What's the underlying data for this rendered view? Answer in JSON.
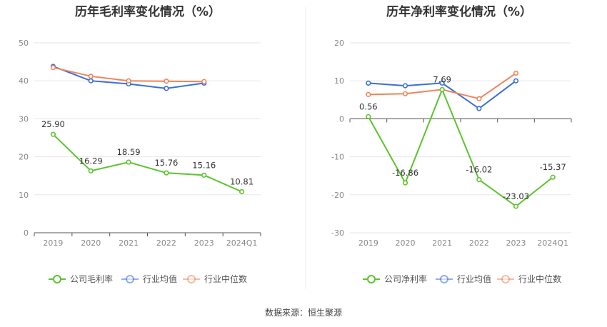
{
  "source_text": "数据来源：恒生聚源",
  "chart_data": [
    {
      "type": "line",
      "title": "历年毛利率变化情况（%）",
      "categories": [
        "2019",
        "2020",
        "2021",
        "2022",
        "2023",
        "2024Q1"
      ],
      "ylim": [
        0,
        50
      ],
      "yticks": [
        0,
        10,
        20,
        30,
        40,
        50
      ],
      "grid": true,
      "legend_position": "bottom",
      "series": [
        {
          "name": "公司毛利率",
          "color": "#5bc42e",
          "values": [
            25.9,
            16.29,
            18.59,
            15.76,
            15.16,
            10.81
          ],
          "labels": [
            "25.90",
            "16.29",
            "18.59",
            "15.76",
            "15.16",
            "10.81"
          ]
        },
        {
          "name": "行业均值",
          "color": "#3a6fd8",
          "values": [
            43.8,
            40.0,
            39.2,
            38.0,
            39.4,
            null
          ]
        },
        {
          "name": "行业中位数",
          "color": "#f0845a",
          "values": [
            43.5,
            41.2,
            40.0,
            39.9,
            39.8,
            null
          ]
        }
      ]
    },
    {
      "type": "line",
      "title": "历年净利率变化情况（%）",
      "categories": [
        "2019",
        "2020",
        "2021",
        "2022",
        "2023",
        "2024Q1"
      ],
      "ylim": [
        -30,
        20
      ],
      "yticks": [
        -30,
        -20,
        -10,
        0,
        10,
        20
      ],
      "grid": true,
      "legend_position": "bottom",
      "series": [
        {
          "name": "公司净利率",
          "color": "#5bc42e",
          "values": [
            0.56,
            -16.86,
            7.69,
            -16.02,
            -23.03,
            -15.37
          ],
          "labels": [
            "0.56",
            "-16.86",
            "7.69",
            "-16.02",
            "-23.03",
            "-15.37"
          ]
        },
        {
          "name": "行业均值",
          "color": "#3a6fd8",
          "values": [
            9.4,
            8.7,
            9.4,
            2.7,
            10.0,
            null
          ]
        },
        {
          "name": "行业中位数",
          "color": "#f0845a",
          "values": [
            6.4,
            6.6,
            7.7,
            5.3,
            12.0,
            null
          ]
        }
      ]
    }
  ]
}
